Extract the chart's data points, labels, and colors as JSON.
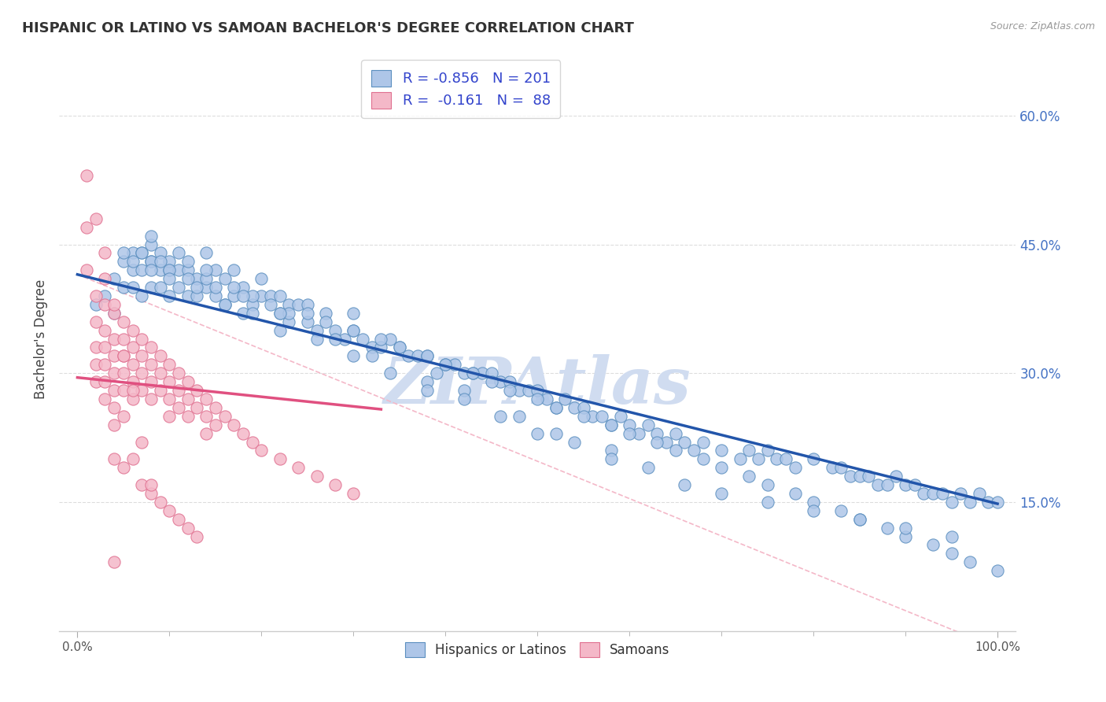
{
  "title": "HISPANIC OR LATINO VS SAMOAN BACHELOR'S DEGREE CORRELATION CHART",
  "source": "Source: ZipAtlas.com",
  "ylabel": "Bachelor's Degree",
  "xlim": [
    -0.02,
    1.02
  ],
  "ylim": [
    0.0,
    0.68
  ],
  "xtick_positions": [
    0.0,
    1.0
  ],
  "xticklabels": [
    "0.0%",
    "100.0%"
  ],
  "ytick_positions": [
    0.15,
    0.3,
    0.45,
    0.6
  ],
  "ytick_labels": [
    "15.0%",
    "30.0%",
    "45.0%",
    "60.0%"
  ],
  "legend_R1": "-0.856",
  "legend_N1": "201",
  "legend_R2": "-0.161",
  "legend_N2": "88",
  "blue_color": "#AEC6E8",
  "blue_edge_color": "#5B8FBF",
  "pink_color": "#F4B8C8",
  "pink_edge_color": "#E07090",
  "blue_line_color": "#2255AA",
  "pink_line_color": "#E05080",
  "dashed_line_color": "#F4B8C8",
  "watermark_color": "#D0DCF0",
  "grid_color": "#DDDDDD",
  "ytick_color": "#4472C4",
  "blue_scatter_x": [
    0.02,
    0.03,
    0.04,
    0.04,
    0.05,
    0.05,
    0.06,
    0.06,
    0.06,
    0.07,
    0.07,
    0.07,
    0.08,
    0.08,
    0.08,
    0.08,
    0.09,
    0.09,
    0.09,
    0.1,
    0.1,
    0.1,
    0.11,
    0.11,
    0.11,
    0.12,
    0.12,
    0.12,
    0.13,
    0.13,
    0.14,
    0.14,
    0.15,
    0.15,
    0.16,
    0.16,
    0.17,
    0.17,
    0.18,
    0.18,
    0.19,
    0.2,
    0.2,
    0.21,
    0.22,
    0.22,
    0.23,
    0.23,
    0.24,
    0.25,
    0.25,
    0.26,
    0.27,
    0.28,
    0.29,
    0.3,
    0.3,
    0.31,
    0.32,
    0.33,
    0.34,
    0.35,
    0.36,
    0.37,
    0.38,
    0.39,
    0.4,
    0.41,
    0.42,
    0.43,
    0.44,
    0.45,
    0.46,
    0.47,
    0.48,
    0.49,
    0.5,
    0.51,
    0.52,
    0.53,
    0.54,
    0.55,
    0.56,
    0.57,
    0.58,
    0.59,
    0.6,
    0.61,
    0.62,
    0.63,
    0.64,
    0.65,
    0.66,
    0.67,
    0.68,
    0.7,
    0.72,
    0.73,
    0.74,
    0.75,
    0.76,
    0.77,
    0.78,
    0.8,
    0.82,
    0.83,
    0.84,
    0.85,
    0.86,
    0.87,
    0.88,
    0.89,
    0.9,
    0.91,
    0.92,
    0.93,
    0.94,
    0.95,
    0.96,
    0.97,
    0.98,
    0.99,
    1.0,
    0.05,
    0.07,
    0.09,
    0.1,
    0.12,
    0.14,
    0.15,
    0.17,
    0.19,
    0.21,
    0.23,
    0.25,
    0.27,
    0.3,
    0.33,
    0.35,
    0.38,
    0.4,
    0.43,
    0.45,
    0.47,
    0.5,
    0.52,
    0.55,
    0.58,
    0.6,
    0.63,
    0.65,
    0.68,
    0.7,
    0.73,
    0.75,
    0.78,
    0.8,
    0.83,
    0.85,
    0.88,
    0.9,
    0.93,
    0.95,
    0.97,
    1.0,
    0.08,
    0.14,
    0.18,
    0.22,
    0.28,
    0.32,
    0.38,
    0.42,
    0.48,
    0.52,
    0.58,
    0.06,
    0.08,
    0.1,
    0.13,
    0.16,
    0.19,
    0.22,
    0.26,
    0.3,
    0.34,
    0.38,
    0.42,
    0.46,
    0.5,
    0.54,
    0.58,
    0.62,
    0.66,
    0.7,
    0.75,
    0.8,
    0.85,
    0.9,
    0.95
  ],
  "blue_scatter_y": [
    0.38,
    0.39,
    0.41,
    0.37,
    0.4,
    0.43,
    0.44,
    0.4,
    0.42,
    0.44,
    0.42,
    0.39,
    0.45,
    0.43,
    0.4,
    0.43,
    0.44,
    0.42,
    0.4,
    0.42,
    0.39,
    0.43,
    0.42,
    0.4,
    0.44,
    0.42,
    0.39,
    0.43,
    0.41,
    0.39,
    0.4,
    0.44,
    0.39,
    0.42,
    0.38,
    0.41,
    0.39,
    0.42,
    0.37,
    0.4,
    0.38,
    0.39,
    0.41,
    0.39,
    0.37,
    0.39,
    0.38,
    0.36,
    0.38,
    0.38,
    0.36,
    0.35,
    0.37,
    0.35,
    0.34,
    0.35,
    0.37,
    0.34,
    0.33,
    0.33,
    0.34,
    0.33,
    0.32,
    0.32,
    0.32,
    0.3,
    0.31,
    0.31,
    0.3,
    0.3,
    0.3,
    0.3,
    0.29,
    0.29,
    0.28,
    0.28,
    0.28,
    0.27,
    0.26,
    0.27,
    0.26,
    0.26,
    0.25,
    0.25,
    0.24,
    0.25,
    0.24,
    0.23,
    0.24,
    0.23,
    0.22,
    0.23,
    0.22,
    0.21,
    0.22,
    0.21,
    0.2,
    0.21,
    0.2,
    0.21,
    0.2,
    0.2,
    0.19,
    0.2,
    0.19,
    0.19,
    0.18,
    0.18,
    0.18,
    0.17,
    0.17,
    0.18,
    0.17,
    0.17,
    0.16,
    0.16,
    0.16,
    0.15,
    0.16,
    0.15,
    0.16,
    0.15,
    0.15,
    0.44,
    0.44,
    0.43,
    0.42,
    0.41,
    0.41,
    0.4,
    0.4,
    0.39,
    0.38,
    0.37,
    0.37,
    0.36,
    0.35,
    0.34,
    0.33,
    0.32,
    0.31,
    0.3,
    0.29,
    0.28,
    0.27,
    0.26,
    0.25,
    0.24,
    0.23,
    0.22,
    0.21,
    0.2,
    0.19,
    0.18,
    0.17,
    0.16,
    0.15,
    0.14,
    0.13,
    0.12,
    0.11,
    0.1,
    0.09,
    0.08,
    0.07,
    0.46,
    0.42,
    0.39,
    0.37,
    0.34,
    0.32,
    0.29,
    0.28,
    0.25,
    0.23,
    0.21,
    0.43,
    0.42,
    0.41,
    0.4,
    0.38,
    0.37,
    0.35,
    0.34,
    0.32,
    0.3,
    0.28,
    0.27,
    0.25,
    0.23,
    0.22,
    0.2,
    0.19,
    0.17,
    0.16,
    0.15,
    0.14,
    0.13,
    0.12,
    0.11
  ],
  "pink_scatter_x": [
    0.01,
    0.01,
    0.01,
    0.02,
    0.02,
    0.02,
    0.02,
    0.02,
    0.03,
    0.03,
    0.03,
    0.03,
    0.03,
    0.03,
    0.04,
    0.04,
    0.04,
    0.04,
    0.04,
    0.04,
    0.04,
    0.05,
    0.05,
    0.05,
    0.05,
    0.05,
    0.05,
    0.06,
    0.06,
    0.06,
    0.06,
    0.06,
    0.07,
    0.07,
    0.07,
    0.07,
    0.08,
    0.08,
    0.08,
    0.08,
    0.09,
    0.09,
    0.09,
    0.1,
    0.1,
    0.1,
    0.1,
    0.11,
    0.11,
    0.11,
    0.12,
    0.12,
    0.12,
    0.13,
    0.13,
    0.14,
    0.14,
    0.14,
    0.15,
    0.15,
    0.16,
    0.17,
    0.18,
    0.19,
    0.2,
    0.22,
    0.24,
    0.26,
    0.28,
    0.3,
    0.04,
    0.05,
    0.06,
    0.07,
    0.08,
    0.09,
    0.1,
    0.11,
    0.12,
    0.13,
    0.03,
    0.04,
    0.05,
    0.06,
    0.07,
    0.08,
    0.02,
    0.03,
    0.04
  ],
  "pink_scatter_y": [
    0.53,
    0.47,
    0.42,
    0.39,
    0.36,
    0.33,
    0.31,
    0.29,
    0.38,
    0.35,
    0.33,
    0.31,
    0.29,
    0.27,
    0.37,
    0.34,
    0.32,
    0.3,
    0.28,
    0.26,
    0.24,
    0.36,
    0.34,
    0.32,
    0.3,
    0.28,
    0.25,
    0.35,
    0.33,
    0.31,
    0.29,
    0.27,
    0.34,
    0.32,
    0.3,
    0.28,
    0.33,
    0.31,
    0.29,
    0.27,
    0.32,
    0.3,
    0.28,
    0.31,
    0.29,
    0.27,
    0.25,
    0.3,
    0.28,
    0.26,
    0.29,
    0.27,
    0.25,
    0.28,
    0.26,
    0.27,
    0.25,
    0.23,
    0.26,
    0.24,
    0.25,
    0.24,
    0.23,
    0.22,
    0.21,
    0.2,
    0.19,
    0.18,
    0.17,
    0.16,
    0.2,
    0.19,
    0.2,
    0.17,
    0.16,
    0.15,
    0.14,
    0.13,
    0.12,
    0.11,
    0.44,
    0.38,
    0.32,
    0.28,
    0.22,
    0.17,
    0.48,
    0.41,
    0.08
  ],
  "blue_line_x": [
    0.0,
    1.0
  ],
  "blue_line_y_start": 0.415,
  "blue_line_y_end": 0.148,
  "pink_line_x": [
    0.0,
    0.33
  ],
  "pink_line_y_start": 0.295,
  "pink_line_y_end": 0.258,
  "dashed_line_x": [
    0.0,
    1.0
  ],
  "dashed_line_y_start": 0.415,
  "dashed_line_y_end": -0.02
}
